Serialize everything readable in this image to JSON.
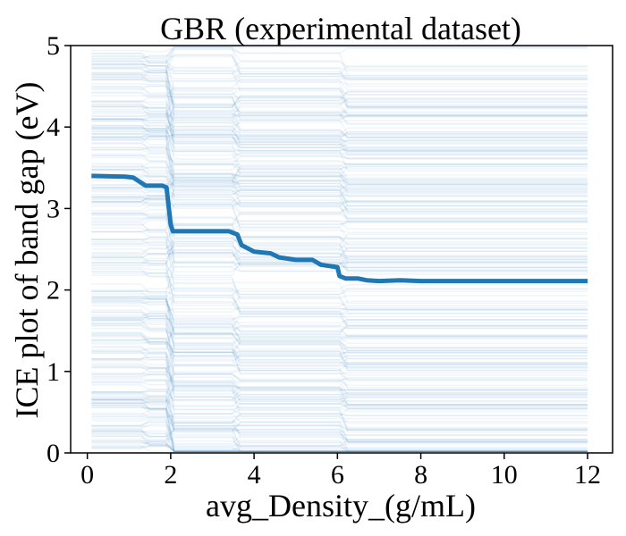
{
  "chart_data": {
    "type": "line",
    "title": "GBR (experimental dataset)",
    "xlabel": "avg_Density_(g/mL)",
    "ylabel": "ICE plot of band gap (eV)",
    "xlim": [
      -0.4,
      12.6
    ],
    "ylim": [
      0,
      5
    ],
    "xticks": [
      0,
      2,
      4,
      6,
      8,
      10,
      12
    ],
    "yticks": [
      0,
      1,
      2,
      3,
      4,
      5
    ],
    "grid": false,
    "line_color": "#1f77b4",
    "ice_curve_count": 300,
    "series": [
      {
        "x": [
          0.1,
          0.9,
          1.1,
          1.4,
          1.8,
          1.9,
          2.0,
          2.05,
          3.4,
          3.6,
          3.7,
          4.0,
          4.4,
          4.6,
          5.0,
          5.4,
          5.6,
          6.0,
          6.05,
          6.2,
          6.5,
          6.7,
          7.0,
          7.5,
          8.0,
          12.0
        ],
        "values": [
          3.4,
          3.39,
          3.38,
          3.28,
          3.28,
          3.26,
          2.8,
          2.72,
          2.72,
          2.68,
          2.55,
          2.47,
          2.45,
          2.4,
          2.37,
          2.37,
          2.31,
          2.28,
          2.17,
          2.14,
          2.14,
          2.12,
          2.11,
          2.12,
          2.11,
          2.11
        ]
      }
    ]
  }
}
